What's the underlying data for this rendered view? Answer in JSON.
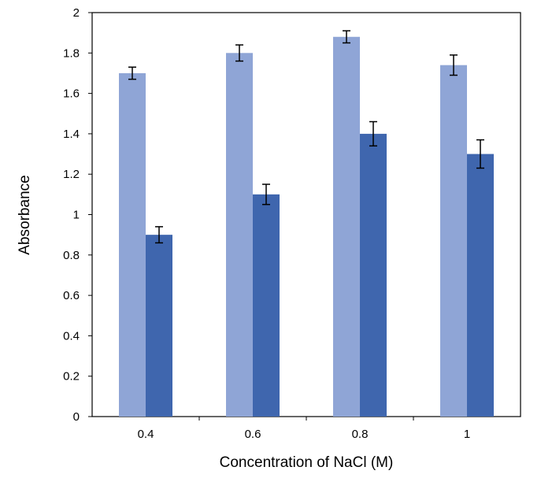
{
  "chart_data": {
    "type": "bar",
    "title": "",
    "xlabel": "Concentration of NaCl (M)",
    "ylabel": "Absorbance",
    "categories": [
      "0.4",
      "0.6",
      "0.8",
      "1"
    ],
    "series": [
      {
        "values": [
          1.7,
          1.8,
          1.88,
          1.74
        ],
        "errors": [
          0.03,
          0.04,
          0.03,
          0.05
        ],
        "color": "#8FA5D6"
      },
      {
        "values": [
          0.9,
          1.1,
          1.4,
          1.3
        ],
        "errors": [
          0.04,
          0.05,
          0.06,
          0.07
        ],
        "color": "#3F66AE"
      }
    ],
    "ylim": [
      0,
      2
    ],
    "yticks": [
      "0",
      "0.2",
      "0.4",
      "0.6",
      "0.8",
      "1",
      "1.2",
      "1.4",
      "1.6",
      "1.8",
      "2"
    ],
    "ytick_values": [
      0,
      0.2,
      0.4,
      0.6,
      0.8,
      1,
      1.2,
      1.4,
      1.6,
      1.8,
      2
    ],
    "grid": false,
    "legend": "none"
  }
}
